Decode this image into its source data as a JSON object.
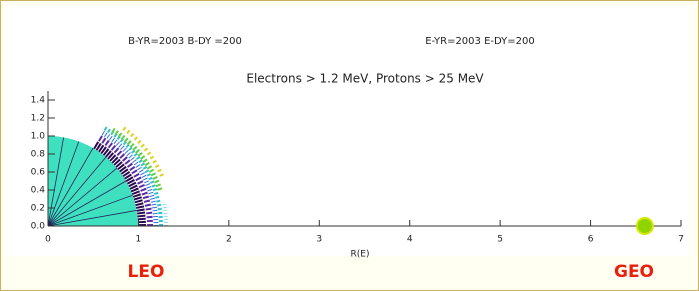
{
  "chart_data": {
    "type": "scatter",
    "title": "Electrons > 1.2 MeV, Protons > 25 MeV",
    "annotations": [
      "B-YR=2003 B-DY =200",
      "E-YR=2003 E-DY=200",
      "LEO",
      "GEO"
    ],
    "xlabel": "R(E)",
    "x": [
      6.6
    ],
    "values": [
      0
    ],
    "color": "#8fd400",
    "xlim": [
      0,
      7
    ],
    "ylim": [
      0,
      1.5
    ],
    "xticks": [
      0,
      1,
      2,
      3,
      4,
      5,
      6,
      7
    ],
    "yticks": [
      {
        "value": 0,
        "label": "0.0"
      },
      0.2,
      0.4,
      0.6,
      0.8,
      {
        "value": 1,
        "label": "1.0"
      },
      1.2,
      1.4
    ]
  }
}
